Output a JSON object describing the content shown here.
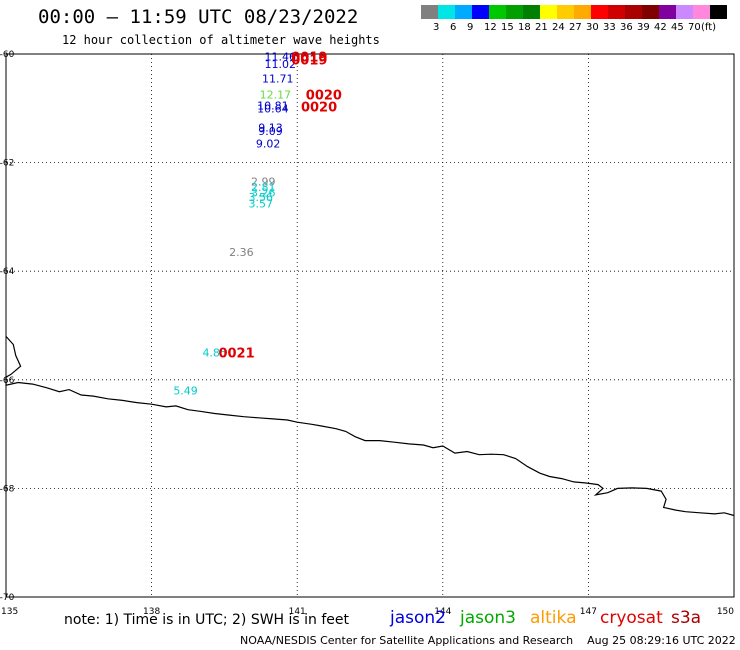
{
  "header": {
    "title": "00:00 – 11:59 UTC 08/23/2022",
    "subtitle": "12 hour collection of altimeter wave heights"
  },
  "legend": {
    "colors": [
      "#808080",
      "#00e6e6",
      "#00aaff",
      "#0000ff",
      "#00c800",
      "#00a000",
      "#008000",
      "#ffff00",
      "#ffcc00",
      "#ffaa00",
      "#ff0000",
      "#d00000",
      "#aa0000",
      "#800000",
      "#8000a0",
      "#cc88ff",
      "#ff88dd",
      "#000000"
    ],
    "labels": [
      "3",
      "6",
      "9",
      "12",
      "15",
      "18",
      "21",
      "24",
      "27",
      "30",
      "33",
      "36",
      "39",
      "42",
      "45",
      "70",
      "(ft)"
    ]
  },
  "map": {
    "lon_min": 135,
    "lon_max": 150,
    "lat_min": -70,
    "lat_max": -60,
    "lon_ticks": [
      "135",
      "138",
      "141",
      "144",
      "147",
      "150"
    ],
    "lat_ticks": [
      "-60",
      "-62",
      "-64",
      "-66",
      "-68",
      "-70"
    ],
    "observations": [
      {
        "value": "11.46",
        "lon": 140.65,
        "lat": -60.05,
        "color": "#0000cc"
      },
      {
        "value": "11.02",
        "lon": 140.65,
        "lat": -60.18,
        "color": "#0000cc"
      },
      {
        "value": "11.71",
        "lon": 140.6,
        "lat": -60.45,
        "color": "#0000cc"
      },
      {
        "value": "12.17",
        "lon": 140.55,
        "lat": -60.75,
        "color": "#66dd44"
      },
      {
        "value": "10.81",
        "lon": 140.5,
        "lat": -60.95,
        "color": "#0000cc"
      },
      {
        "value": "10.64",
        "lon": 140.5,
        "lat": -61.0,
        "color": "#0000cc"
      },
      {
        "value": "9.13",
        "lon": 140.45,
        "lat": -61.35,
        "color": "#0000cc"
      },
      {
        "value": "9.09",
        "lon": 140.45,
        "lat": -61.42,
        "color": "#0000cc"
      },
      {
        "value": "9.02",
        "lon": 140.4,
        "lat": -61.65,
        "color": "#0000cc"
      },
      {
        "value": "2.99",
        "lon": 140.3,
        "lat": -62.35,
        "color": "#808080"
      },
      {
        "value": "2.81",
        "lon": 140.3,
        "lat": -62.45,
        "color": "#00cccc"
      },
      {
        "value": "3.26",
        "lon": 140.3,
        "lat": -62.55,
        "color": "#00cccc"
      },
      {
        "value": "3.56",
        "lon": 140.25,
        "lat": -62.63,
        "color": "#00cccc"
      },
      {
        "value": "3.57",
        "lon": 140.25,
        "lat": -62.75,
        "color": "#00cccc"
      },
      {
        "value": "2.36",
        "lon": 139.85,
        "lat": -63.65,
        "color": "#808080"
      },
      {
        "value": "4.85",
        "lon": 139.3,
        "lat": -65.5,
        "color": "#00cccc"
      },
      {
        "value": "5.49",
        "lon": 138.7,
        "lat": -66.2,
        "color": "#00cccc"
      }
    ],
    "times": [
      {
        "label": "0019",
        "lon": 141.25,
        "lat": -60.05
      },
      {
        "label": "0019",
        "lon": 141.25,
        "lat": -60.1
      },
      {
        "label": "0020",
        "lon": 141.55,
        "lat": -60.75
      },
      {
        "label": "0020",
        "lon": 141.45,
        "lat": -60.97
      },
      {
        "label": "0021",
        "lon": 139.75,
        "lat": -65.5
      }
    ],
    "coastline_lonlat": [
      [
        135.0,
        -65.2
      ],
      [
        135.15,
        -65.35
      ],
      [
        135.2,
        -65.55
      ],
      [
        135.3,
        -65.75
      ],
      [
        135.1,
        -65.9
      ],
      [
        135.0,
        -65.95
      ],
      [
        135.0,
        -66.1
      ],
      [
        135.25,
        -66.05
      ],
      [
        135.55,
        -66.08
      ],
      [
        135.85,
        -66.15
      ],
      [
        136.1,
        -66.22
      ],
      [
        136.3,
        -66.18
      ],
      [
        136.55,
        -66.28
      ],
      [
        136.8,
        -66.3
      ],
      [
        137.1,
        -66.35
      ],
      [
        137.4,
        -66.38
      ],
      [
        137.7,
        -66.42
      ],
      [
        138.0,
        -66.45
      ],
      [
        138.3,
        -66.5
      ],
      [
        138.5,
        -66.48
      ],
      [
        138.75,
        -66.55
      ],
      [
        139.0,
        -66.58
      ],
      [
        139.3,
        -66.62
      ],
      [
        139.6,
        -66.65
      ],
      [
        139.9,
        -66.68
      ],
      [
        140.2,
        -66.7
      ],
      [
        140.5,
        -66.72
      ],
      [
        140.8,
        -66.74
      ],
      [
        141.0,
        -66.78
      ],
      [
        141.3,
        -66.82
      ],
      [
        141.5,
        -66.85
      ],
      [
        141.8,
        -66.9
      ],
      [
        142.0,
        -66.95
      ],
      [
        142.2,
        -67.05
      ],
      [
        142.4,
        -67.12
      ],
      [
        142.7,
        -67.12
      ],
      [
        143.0,
        -67.15
      ],
      [
        143.3,
        -67.18
      ],
      [
        143.6,
        -67.2
      ],
      [
        143.8,
        -67.25
      ],
      [
        144.0,
        -67.22
      ],
      [
        144.25,
        -67.35
      ],
      [
        144.5,
        -67.32
      ],
      [
        144.75,
        -67.38
      ],
      [
        145.0,
        -67.37
      ],
      [
        145.25,
        -67.38
      ],
      [
        145.5,
        -67.45
      ],
      [
        145.75,
        -67.6
      ],
      [
        146.0,
        -67.72
      ],
      [
        146.2,
        -67.78
      ],
      [
        146.45,
        -67.82
      ],
      [
        146.7,
        -67.88
      ],
      [
        146.95,
        -67.9
      ],
      [
        147.2,
        -67.93
      ],
      [
        147.3,
        -68.0
      ],
      [
        147.15,
        -68.12
      ],
      [
        147.4,
        -68.08
      ],
      [
        147.6,
        -68.0
      ],
      [
        147.9,
        -67.99
      ],
      [
        148.2,
        -68.0
      ],
      [
        148.5,
        -68.05
      ],
      [
        148.6,
        -68.2
      ],
      [
        148.55,
        -68.35
      ],
      [
        148.8,
        -68.4
      ],
      [
        149.0,
        -68.43
      ],
      [
        149.3,
        -68.45
      ],
      [
        149.6,
        -68.47
      ],
      [
        149.8,
        -68.45
      ],
      [
        150.0,
        -68.5
      ]
    ]
  },
  "footer": {
    "note": "note: 1) Time is in UTC; 2) SWH is in feet",
    "satellites": [
      {
        "name": "jason2",
        "color": "#0000dd"
      },
      {
        "name": "jason3",
        "color": "#00aa00"
      },
      {
        "name": "altika",
        "color": "#ff9900"
      },
      {
        "name": "cryosat",
        "color": "#e00000"
      },
      {
        "name": "s3a",
        "color": "#aa0000"
      }
    ],
    "credit": "NOAA/NESDIS Center for Satellite Applications and Research    Aug 25 08:29:16 UTC 2022"
  }
}
